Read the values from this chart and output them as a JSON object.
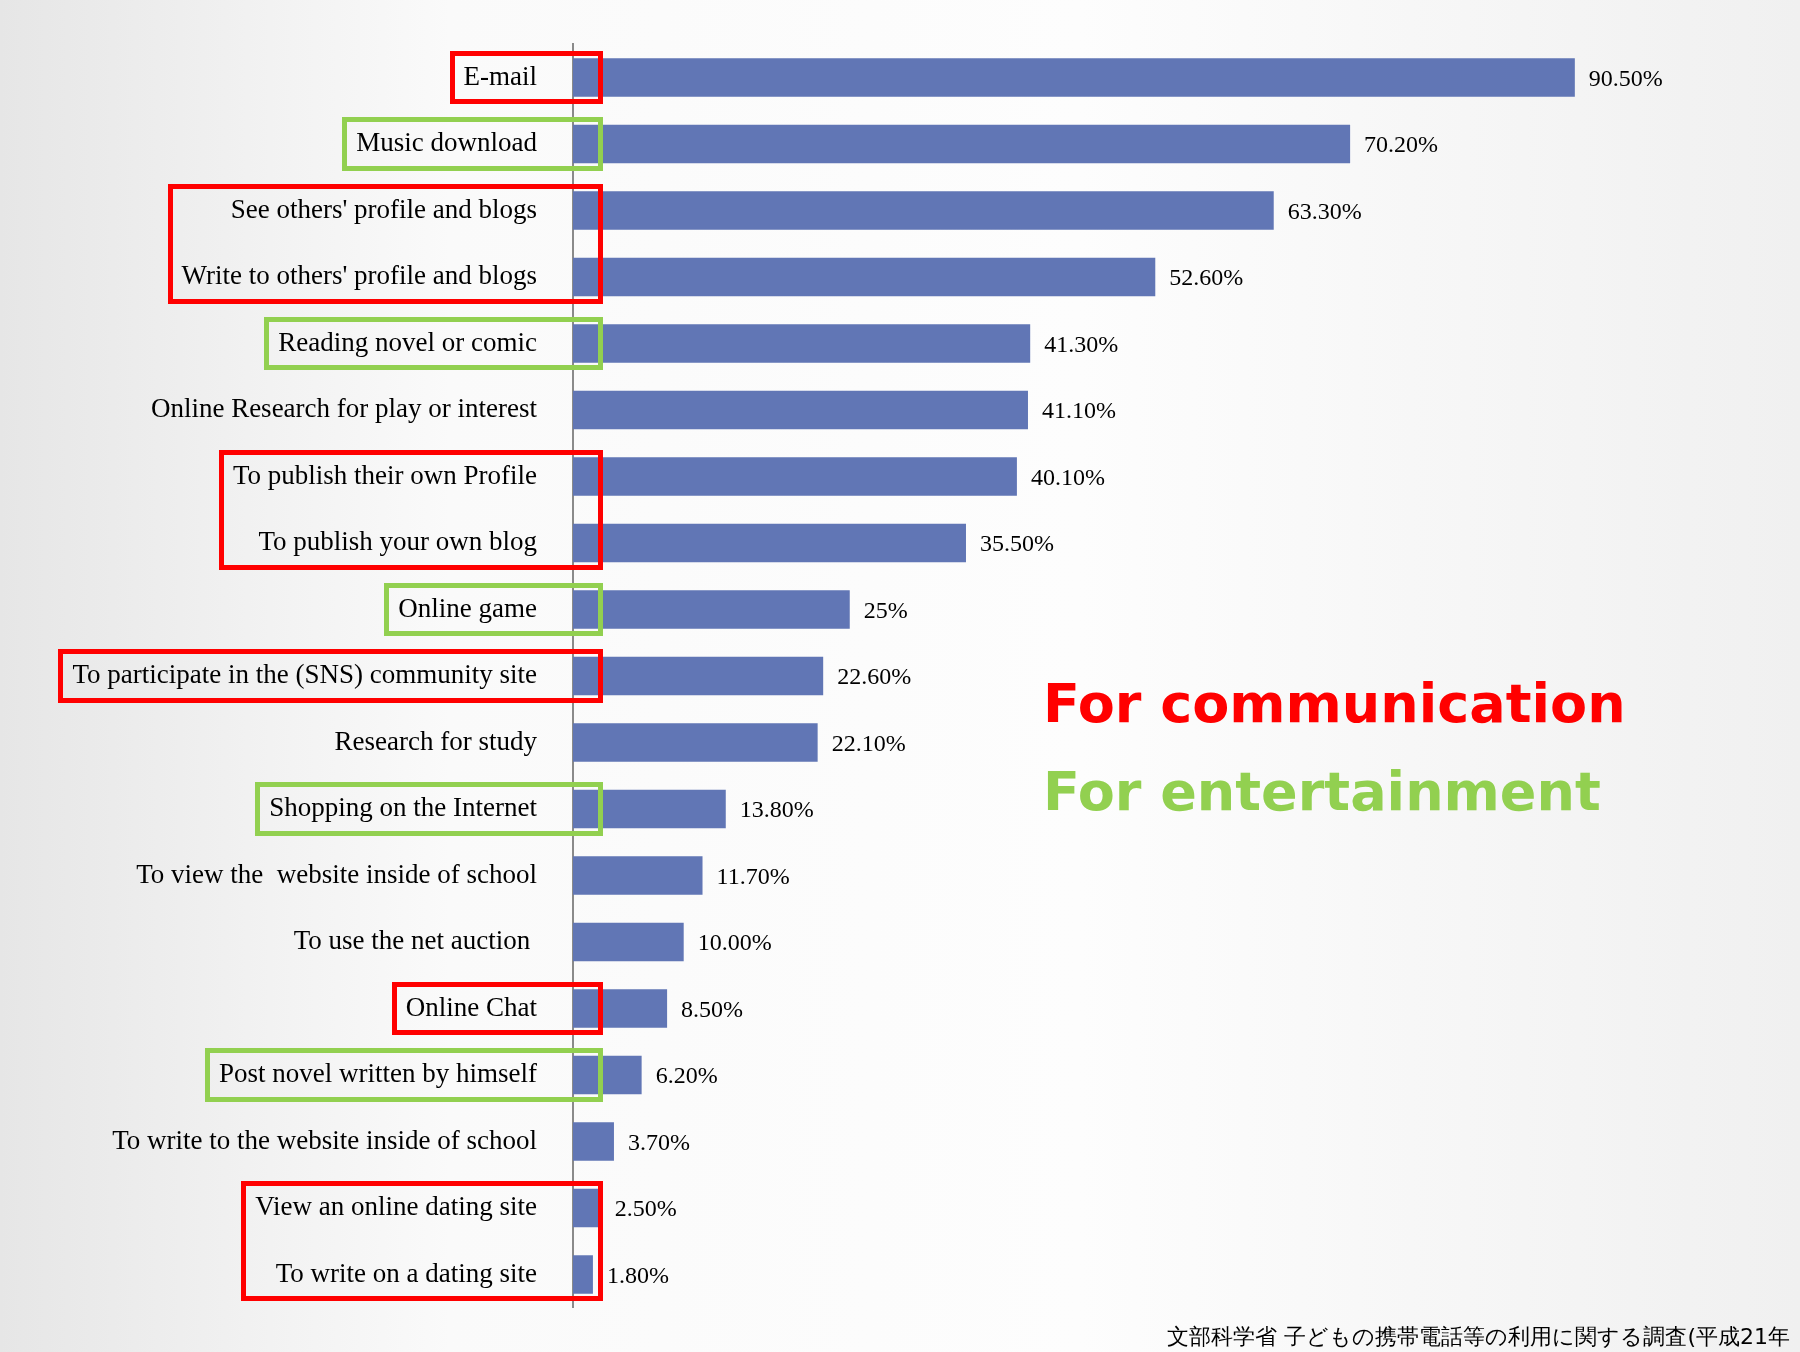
{
  "chart_data": {
    "type": "bar",
    "orientation": "horizontal",
    "categories": [
      "E-mail",
      "Music download",
      "See others' profile and blogs",
      "Write to others' profile and blogs",
      "Reading novel or comic",
      "Online Research for play or interest",
      "To publish their own Profile",
      "To publish your own blog",
      "Online game",
      "To participate in the (SNS) community site",
      "Research for study",
      "Shopping on the Internet",
      "To view the  website inside of school",
      "To use the net auction ",
      "Online Chat",
      "Post novel written by himself",
      "To write to the website inside of school",
      "View an online dating site",
      "To write on a dating site"
    ],
    "values": [
      90.5,
      70.2,
      63.3,
      52.6,
      41.3,
      41.1,
      40.1,
      35.5,
      25,
      22.6,
      22.1,
      13.8,
      11.7,
      10,
      8.5,
      6.2,
      3.7,
      2.5,
      1.8
    ],
    "value_labels": [
      "90.50%",
      "70.20%",
      "63.30%",
      "52.60%",
      "41.30%",
      "41.10%",
      "40.10%",
      "35.50%",
      "25%",
      "22.60%",
      "22.10%",
      "13.80%",
      "11.70%",
      "10.00%",
      "8.50%",
      "6.20%",
      "3.70%",
      "2.50%",
      "1.80%"
    ],
    "color": "#6176b5",
    "tick_labels": "y",
    "annotations": [
      "For communication",
      "For entertainment",
      "文部科学省 子どもの携帯電話等の利用に関する調査(平成21年"
    ]
  }
}
